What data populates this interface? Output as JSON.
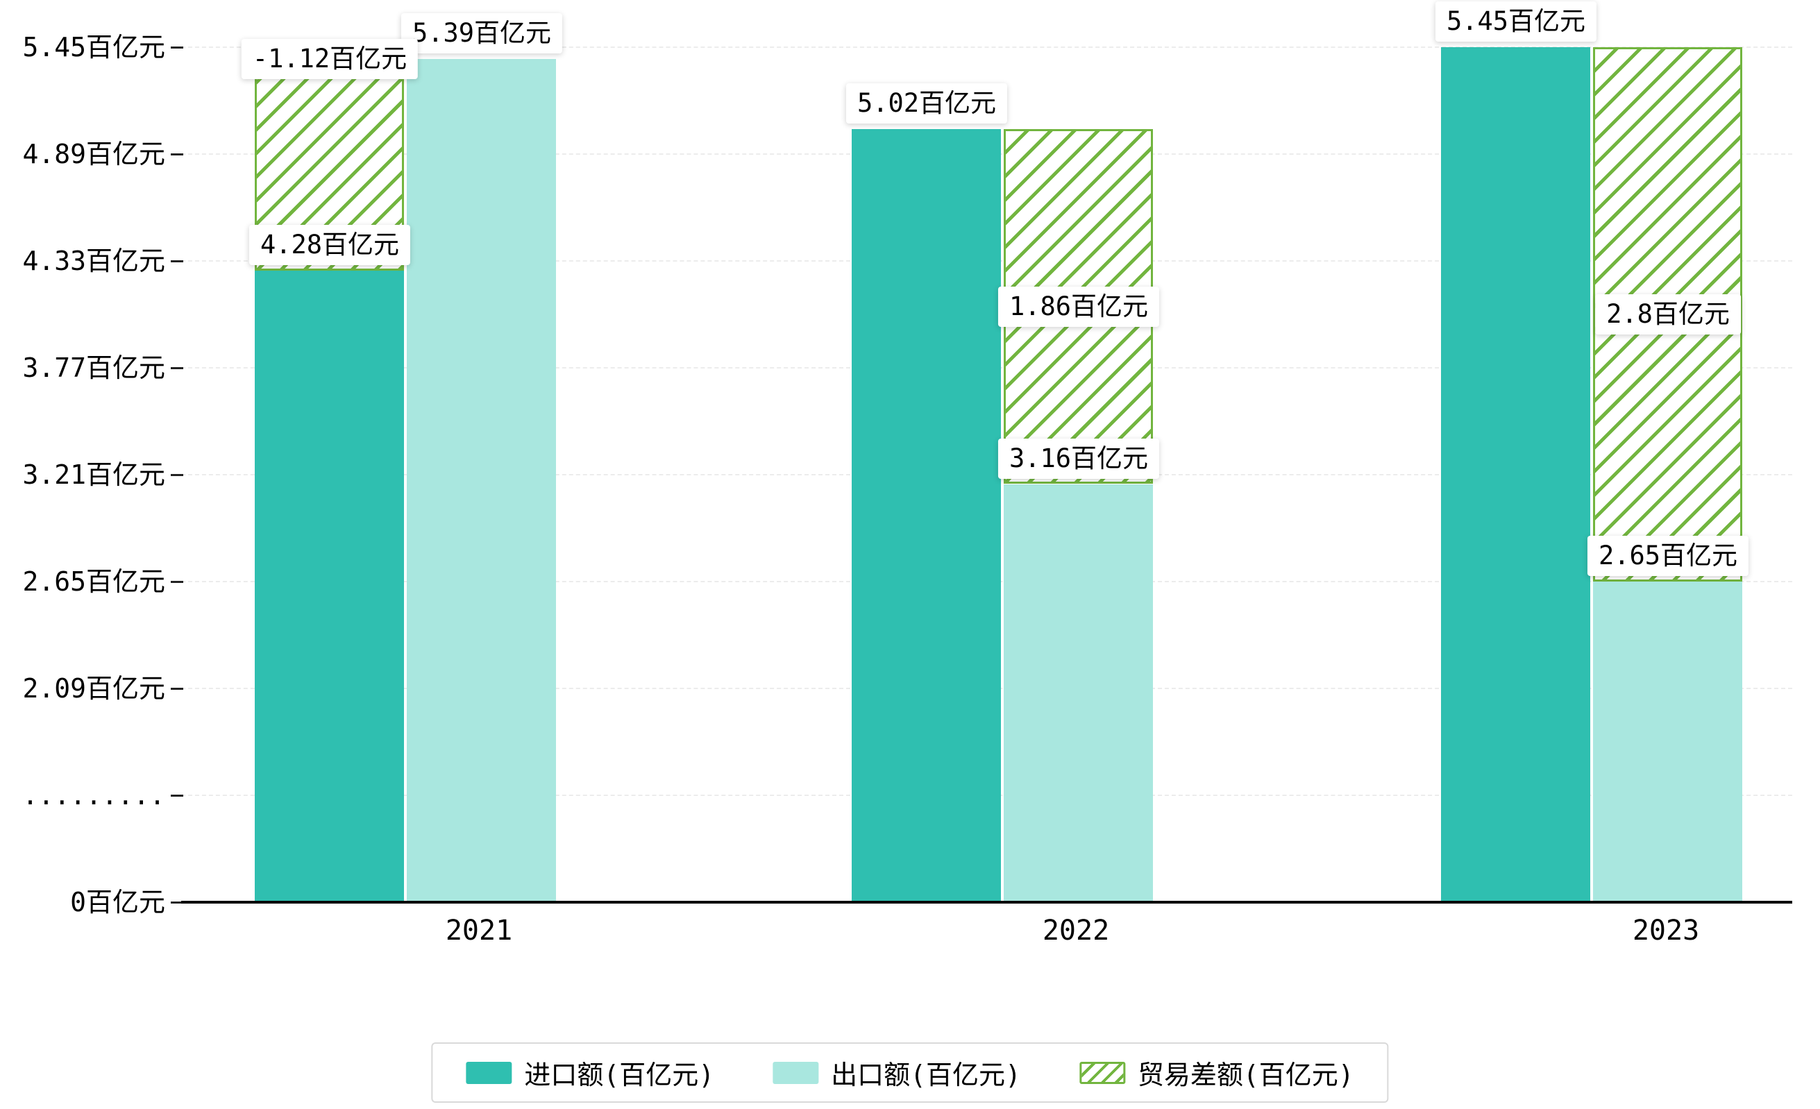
{
  "chart_data": {
    "type": "bar",
    "title": "",
    "unit": "百亿元",
    "categories": [
      "2021",
      "2022",
      "2023"
    ],
    "series": [
      {
        "name": "进口额(百亿元)",
        "type": "bar",
        "color": "#2FBFB0",
        "values": [
          4.28,
          5.02,
          5.45
        ],
        "labels": [
          "4.28百亿元",
          "5.02百亿元",
          "5.45百亿元"
        ]
      },
      {
        "name": "出口额(百亿元)",
        "type": "bar",
        "color": "#A9E7DF",
        "values": [
          5.39,
          3.16,
          2.65
        ],
        "labels": [
          "5.39百亿元",
          "3.16百亿元",
          "2.65百亿元"
        ]
      },
      {
        "name": "贸易差额(百亿元)",
        "type": "bar",
        "style": "hatched",
        "color": "#72B53F",
        "values": [
          -1.12,
          1.86,
          2.8
        ],
        "labels": [
          "-1.12百亿元",
          "1.86百亿元",
          "2.8百亿元"
        ]
      }
    ],
    "y_axis": {
      "tick_labels": [
        "5.45百亿元",
        "4.89百亿元",
        "4.33百亿元",
        "3.77百亿元",
        "3.21百亿元",
        "2.65百亿元",
        "2.09百亿元",
        ".........",
        "0百亿元"
      ],
      "tick_values": [
        5.45,
        4.89,
        4.33,
        3.77,
        3.21,
        2.65,
        2.09,
        null,
        0
      ],
      "step_value": 0.56,
      "break_value": 2.09,
      "axis_break": true
    },
    "x_axis": {
      "labels": [
        "2021",
        "2022",
        "2023"
      ]
    },
    "legend": {
      "position": "bottom",
      "items": [
        "进口额(百亿元)",
        "出口额(百亿元)",
        "贸易差额(百亿元)"
      ]
    },
    "grid": true,
    "ylim": [
      0,
      5.45
    ]
  },
  "colors": {
    "import_bar": "#2FBFB0",
    "export_bar": "#A9E7DF",
    "balance_hatch": "#72B53F",
    "gridline": "#ECECEC",
    "axis_line": "#000000",
    "legend_border": "#D9D9D9",
    "background": "#FFFFFF",
    "label_text": "#000000"
  }
}
